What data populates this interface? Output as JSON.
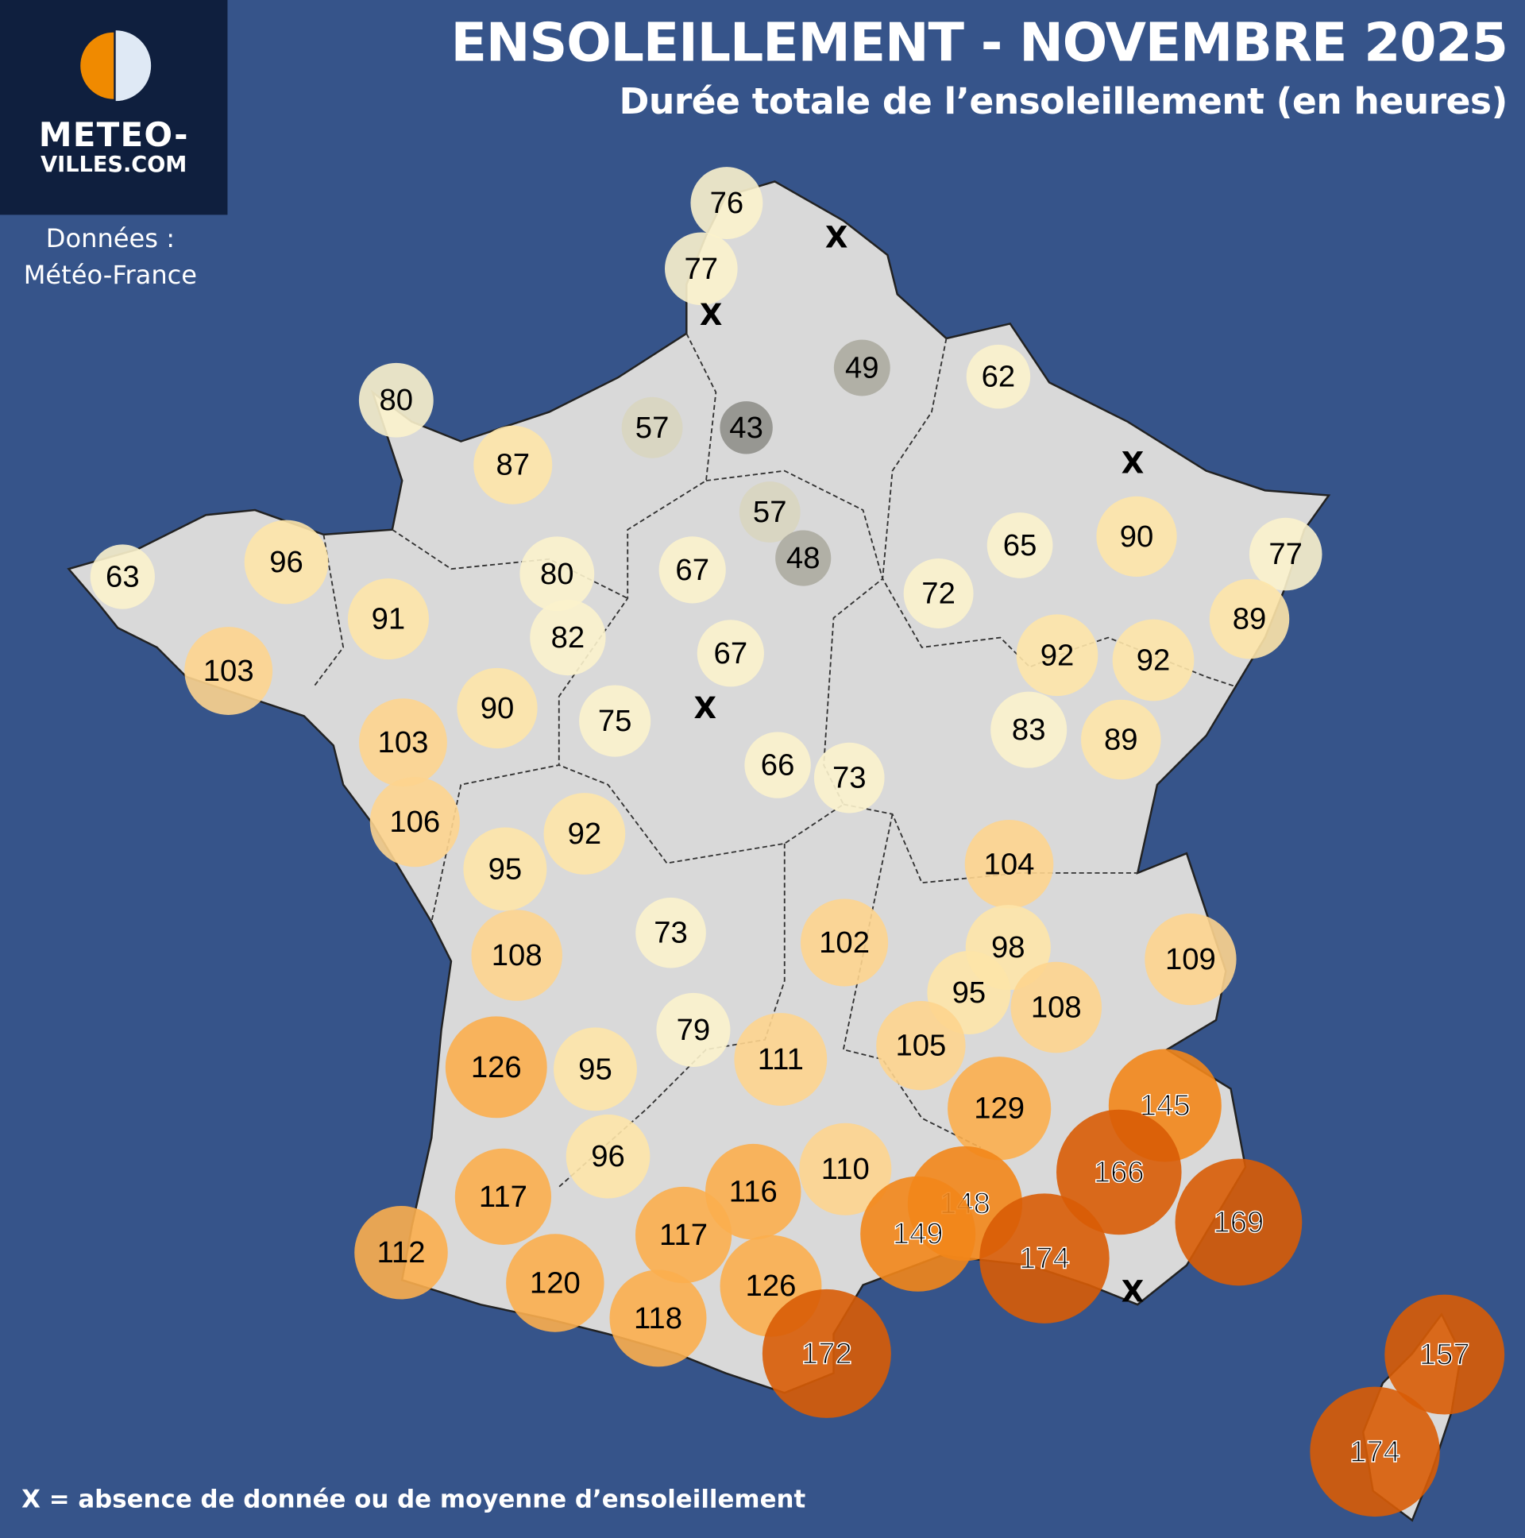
{
  "header": {
    "title": "ENSOLEILLEMENT - NOVEMBRE 2025",
    "subtitle": "Durée totale de l’ensoleillement (en heures)"
  },
  "logo": {
    "line1": "METEO-",
    "line2": "VILLES.COM",
    "colors": {
      "orange": "#f08a00",
      "light": "#dfe9f5",
      "bg": "#0f1f3e"
    }
  },
  "source": {
    "line1": "Données :",
    "line2": "Météo-France"
  },
  "legend": {
    "text": "X = absence de donnée ou de moyenne d’ensoleillement",
    "missing_marker": "X"
  },
  "colors": {
    "ocean": "#36548a",
    "land": "#d9d9d9",
    "border": "#222222"
  },
  "stations": [
    76,
    77,
    49,
    62,
    80,
    57,
    43,
    87,
    57,
    48,
    65,
    90,
    77,
    63,
    96,
    80,
    67,
    72,
    89,
    91,
    82,
    67,
    92,
    92,
    103,
    90,
    75,
    83,
    89,
    103,
    66,
    73,
    106,
    92,
    95,
    104,
    73,
    102,
    98,
    109,
    108,
    95,
    108,
    79,
    111,
    105,
    126,
    95,
    129,
    145,
    96,
    110,
    166,
    117,
    116,
    148,
    149,
    169,
    117,
    112,
    174,
    120,
    126,
    118,
    172,
    157,
    174
  ],
  "missing_count_markers": [
    "X",
    "X",
    "X",
    "X",
    "X"
  ]
}
